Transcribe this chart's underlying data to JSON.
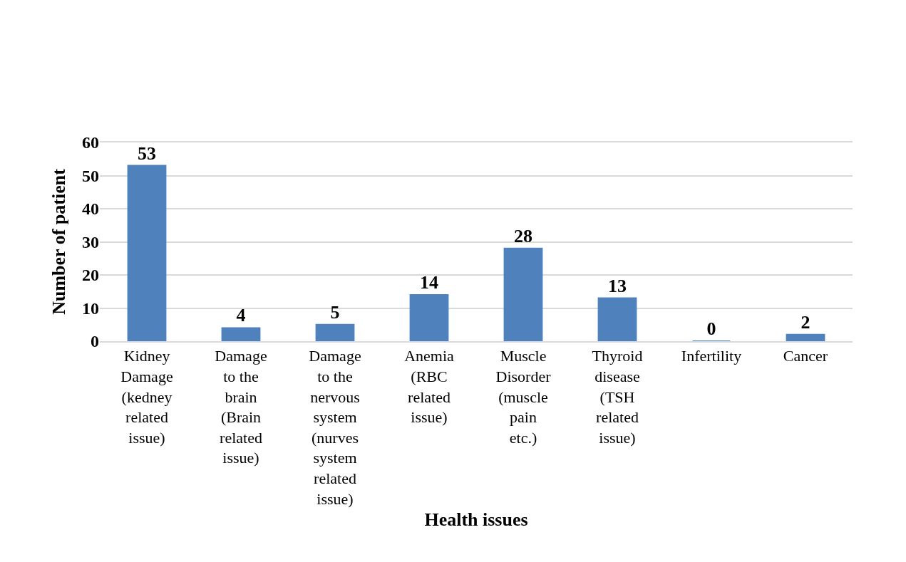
{
  "chart_data": {
    "type": "bar",
    "xlabel": "Health issues",
    "ylabel": "Number of patient",
    "categories": [
      "Kidney Damage (kedney related issue)",
      "Damage to the brain (Brain related issue)",
      "Damage to the nervous system (nurves system related issue)",
      "Anemia (RBC related issue)",
      "Muscle Disorder (muscle pain etc.)",
      "Thyroid disease (TSH related issue)",
      "Infertility",
      "Cancer"
    ],
    "values": [
      53,
      4,
      5,
      14,
      28,
      13,
      0,
      2
    ],
    "color": "#4f81bd",
    "ylim": [
      0,
      60
    ],
    "yticks": [
      0,
      10,
      20,
      30,
      40,
      50,
      60
    ],
    "grid": "y",
    "data_labels": true
  }
}
